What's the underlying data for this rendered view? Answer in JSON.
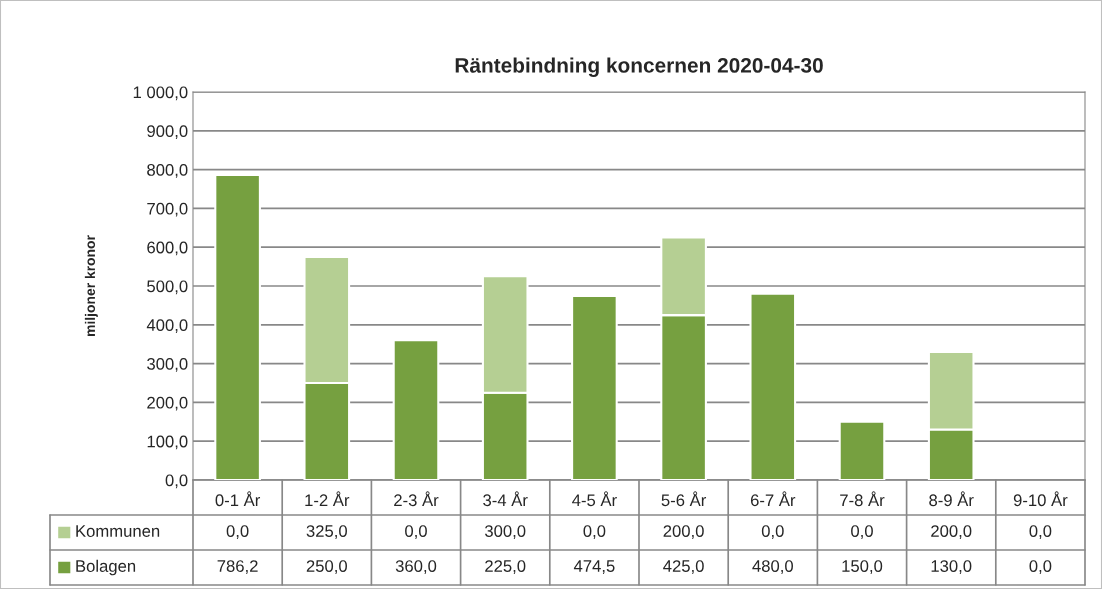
{
  "chart_data": {
    "type": "bar",
    "title": "Räntebindning koncernen 2020-04-30",
    "ylabel": "miljoner kronor",
    "stacked": true,
    "categories": [
      "0-1 År",
      "1-2 År",
      "2-3 År",
      "3-4 År",
      "4-5 År",
      "5-6 År",
      "6-7 År",
      "7-8 År",
      "8-9 År",
      "9-10 År"
    ],
    "series": [
      {
        "name": "Bolagen",
        "color": "#76a040",
        "values": [
          786.2,
          250.0,
          360.0,
          225.0,
          474.5,
          425.0,
          480.0,
          150.0,
          130.0,
          0.0
        ],
        "value_labels": [
          "786,2",
          "250,0",
          "360,0",
          "225,0",
          "474,5",
          "425,0",
          "480,0",
          "150,0",
          "130,0",
          "0,0"
        ]
      },
      {
        "name": "Kommunen",
        "color": "#b5cf93",
        "values": [
          0.0,
          325.0,
          0.0,
          300.0,
          0.0,
          200.0,
          0.0,
          0.0,
          200.0,
          0.0
        ],
        "value_labels": [
          "0,0",
          "325,0",
          "0,0",
          "300,0",
          "0,0",
          "200,0",
          "0,0",
          "0,0",
          "200,0",
          "0,0"
        ]
      }
    ],
    "ylim": [
      0,
      1000
    ],
    "yticks": [
      {
        "value": 0,
        "label": "0,0"
      },
      {
        "value": 100,
        "label": "100,0"
      },
      {
        "value": 200,
        "label": "200,0"
      },
      {
        "value": 300,
        "label": "300,0"
      },
      {
        "value": 400,
        "label": "400,0"
      },
      {
        "value": 500,
        "label": "500,0"
      },
      {
        "value": 600,
        "label": "600,0"
      },
      {
        "value": 700,
        "label": "700,0"
      },
      {
        "value": 800,
        "label": "800,0"
      },
      {
        "value": 900,
        "label": "900,0"
      },
      {
        "value": 1000,
        "label": "1 000,0"
      }
    ],
    "grid": "y",
    "legend": "bottom"
  }
}
